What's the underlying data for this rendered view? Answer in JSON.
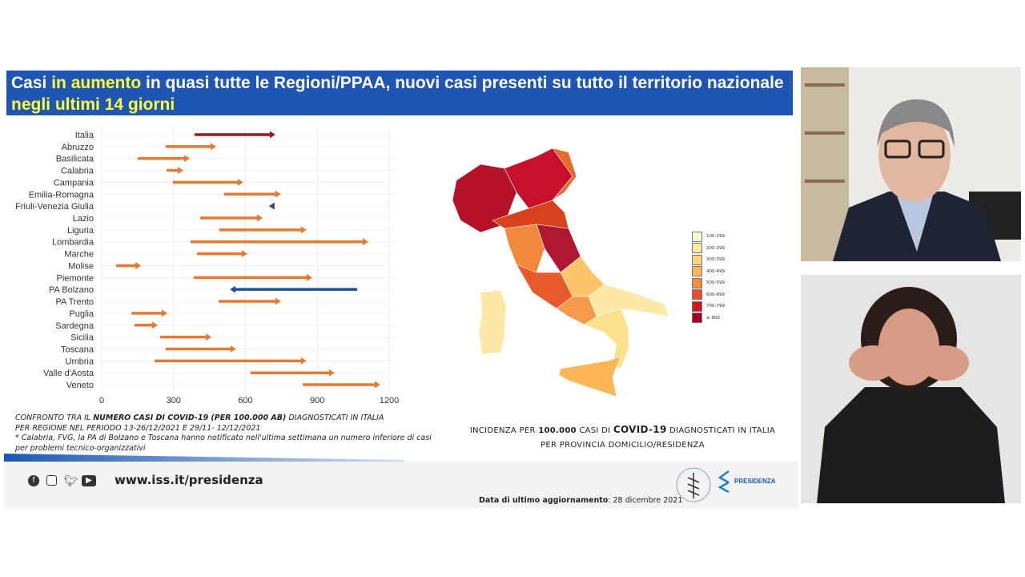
{
  "slide": {
    "title": {
      "part1": "Casi ",
      "highlight1": "in aumento",
      "part2": " in quasi tutte le Regioni/PPAA, nuovi casi presenti su tutto il territorio nazionale",
      "highlight2": "negli ultimi 14 giorni"
    },
    "caption": {
      "line1_a": "CONFRONTO TRA IL ",
      "line1_b": "NUMERO CASI DI COVID-19 (PER 100.000 AB)",
      "line1_c": " DIAGNOSTICATI IN ITALIA",
      "line2": "PER REGIONE NEL PERIODO 13-26/12/2021 E 29/11- 12/12/2021",
      "note": "* Calabria, FVG, la PA di Bolzano e Toscana hanno notificato nell'ultima settimana  un numero inferiore di casi per problemi tecnico-organizzativi"
    },
    "map": {
      "caption_line1_a": "INCIDENZA PER ",
      "caption_line1_b": "100.000",
      "caption_line1_c": " CASI DI ",
      "caption_line1_d": "COVID-19",
      "caption_line1_e": " DIAGNOSTICATI IN ITALIA",
      "caption_line2": "PER PROVINCIA DOMICILIO/RESIDENZA",
      "legend": [
        {
          "label": "100-199",
          "color": "#fffbd0"
        },
        {
          "label": "200-299",
          "color": "#fee9a0"
        },
        {
          "label": "300-399",
          "color": "#fdd57a"
        },
        {
          "label": "400-499",
          "color": "#fdb556"
        },
        {
          "label": "500-599",
          "color": "#f98b3c"
        },
        {
          "label": "600-699",
          "color": "#f04a2a"
        },
        {
          "label": "700-799",
          "color": "#d7111f"
        },
        {
          "label": "≥ 800",
          "color": "#a50026"
        }
      ]
    },
    "footer": {
      "social_icons": [
        "facebook-icon",
        "instagram-icon",
        "twitter-icon",
        "youtube-icon"
      ],
      "url": "www.iss.it/presidenza",
      "updated_label": "Data di ultimo aggiornamento",
      "updated_value": ": 28 dicembre 2021",
      "logo_text": "ISTITUTO SUPERIORE DI SANITÀ",
      "presidenza": "PRESIDENZA"
    }
  },
  "chart_data": {
    "type": "arrow-dumbbell",
    "xlim": [
      0,
      1200
    ],
    "xticks": [
      "0",
      "300",
      "600",
      "900",
      "1200"
    ],
    "grid": true,
    "colors": {
      "italia": "#a01818",
      "increase": "#e8792f",
      "decrease": "#1c4f9c"
    },
    "categories": [
      "Italia",
      "Abruzzo",
      "Basilicata",
      "Calabria",
      "Campania",
      "Emilia-Romagna",
      "Friuli-Venezia Giulia",
      "Lazio",
      "Liguria",
      "Lombardia",
      "Marche",
      "Molise",
      "Piemonte",
      "PA Bolzano",
      "PA Trento",
      "Puglia",
      "Sardegna",
      "Sicilia",
      "Toscana",
      "Umbria",
      "Valle d'Aosta",
      "Veneto"
    ],
    "from": [
      388,
      267,
      150,
      271,
      297,
      511,
      717,
      411,
      491,
      371,
      398,
      60,
      384,
      1066,
      488,
      124,
      137,
      244,
      267,
      221,
      621,
      839
    ],
    "to": [
      725,
      478,
      368,
      341,
      591,
      748,
      698,
      672,
      855,
      1113,
      608,
      164,
      879,
      535,
      748,
      274,
      234,
      458,
      561,
      855,
      972,
      1163
    ]
  }
}
